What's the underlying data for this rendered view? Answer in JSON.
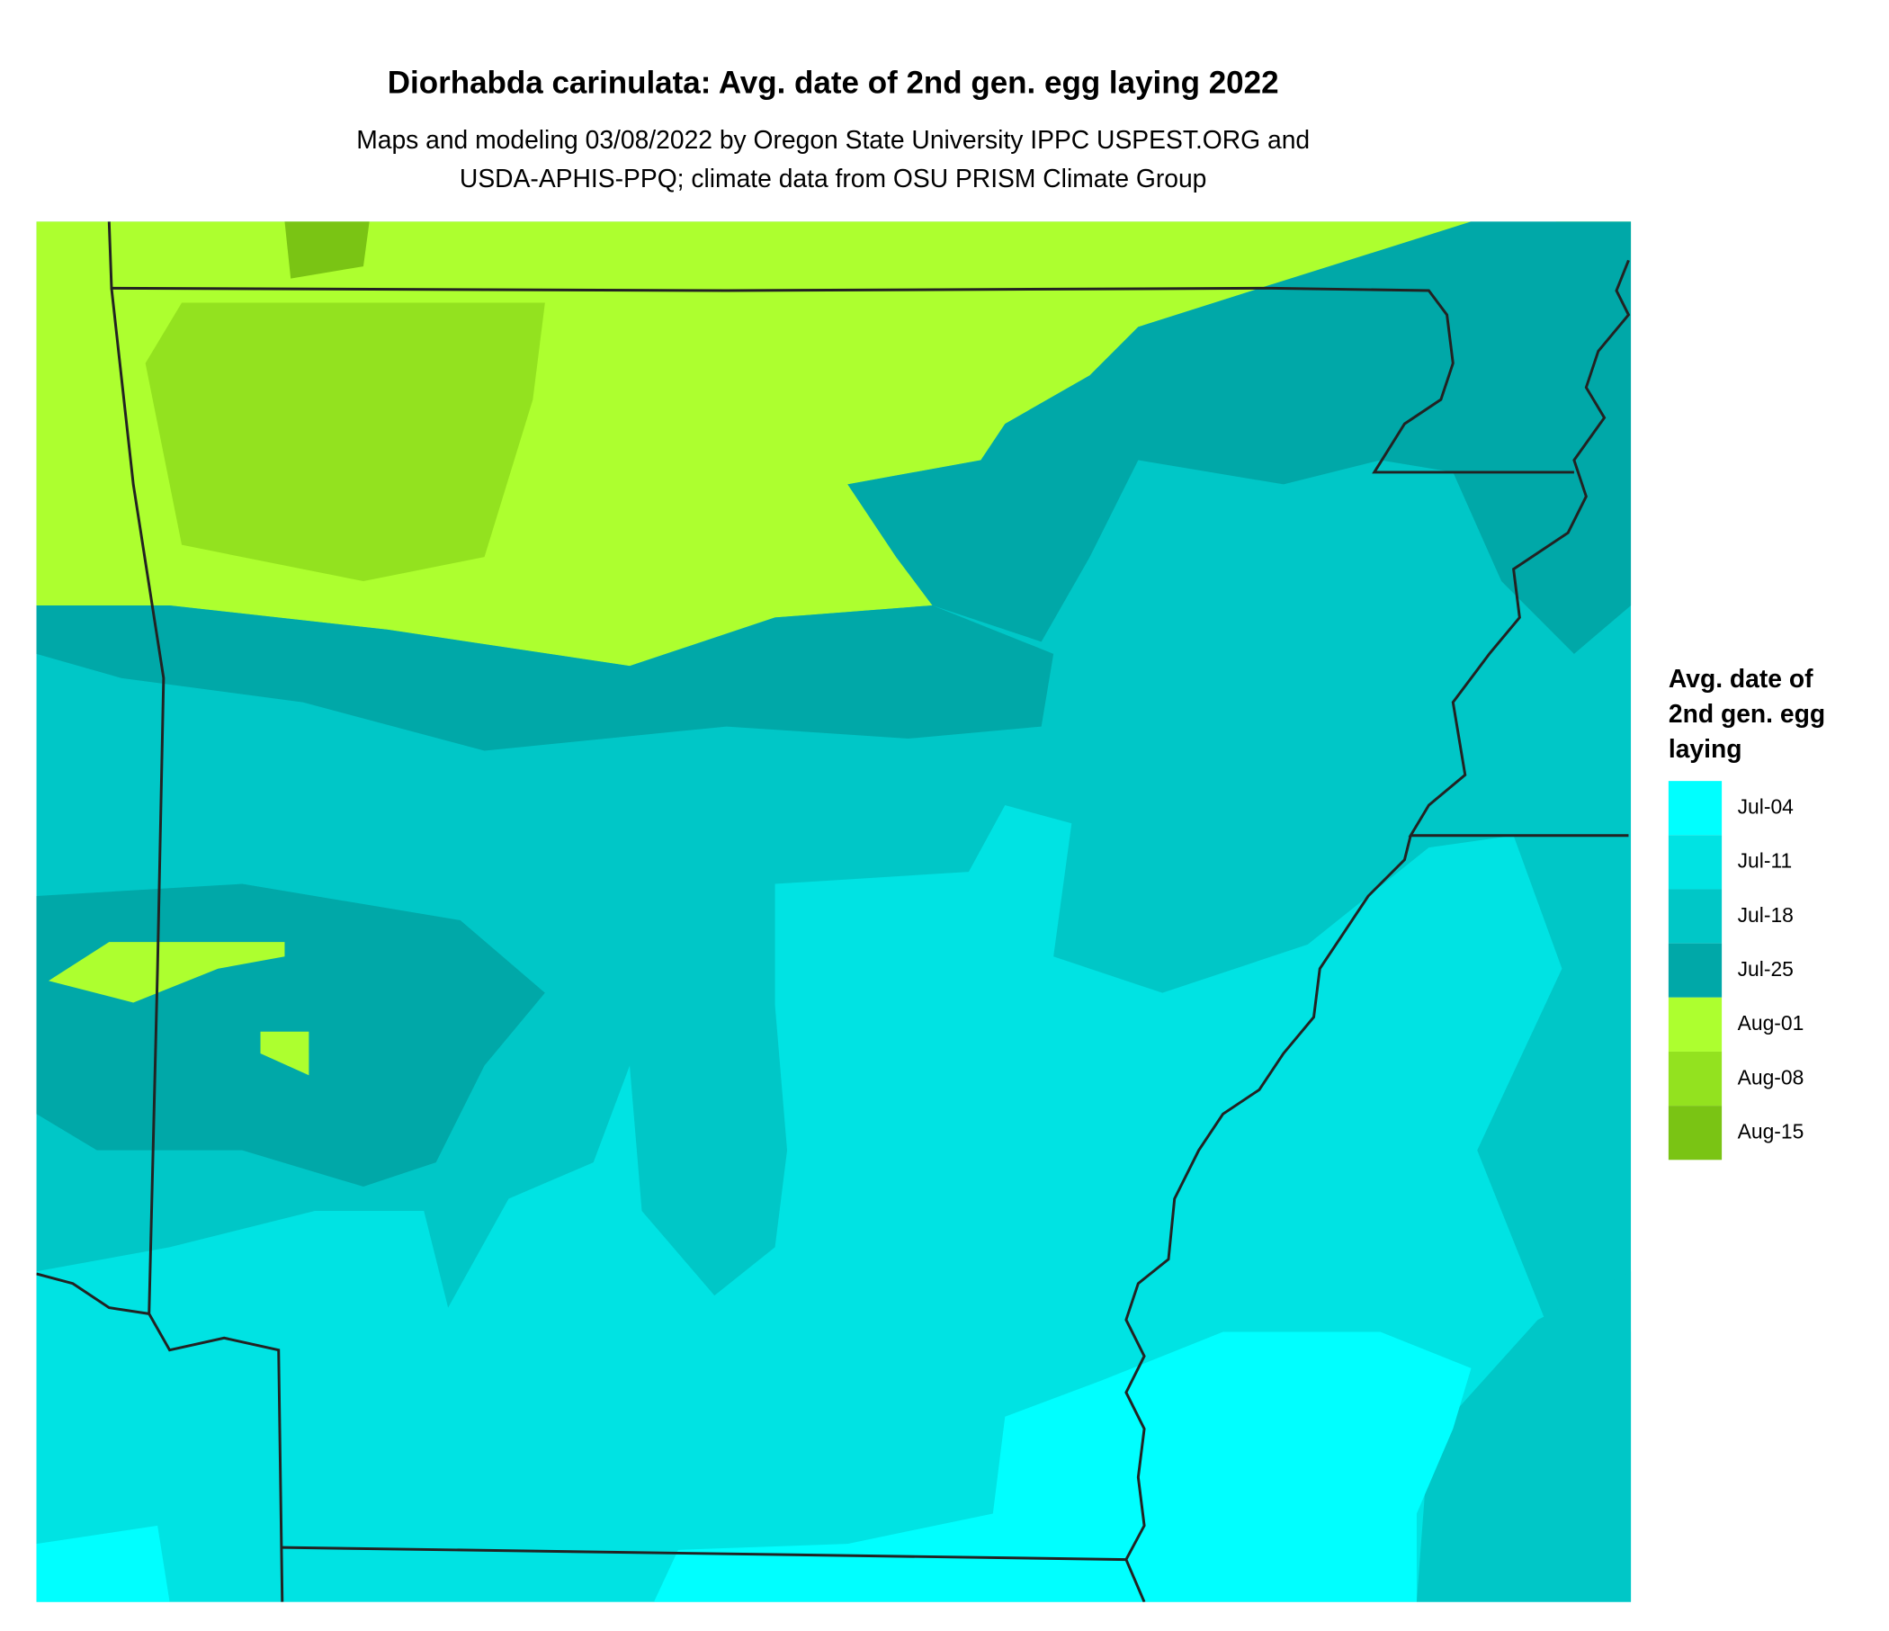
{
  "title": "Diorhabda carinulata: Avg. date of 2nd gen. egg laying 2022",
  "subtitle": [
    "Maps and modeling 03/08/2022 by Oregon State University IPPC USPEST.ORG and",
    "USDA-APHIS-PPQ; climate data from OSU PRISM Climate Group"
  ],
  "legend": {
    "title": [
      "Avg. date of",
      "2nd gen. egg",
      "laying"
    ],
    "items": [
      {
        "label": "Jul-04",
        "color": "#00ffff"
      },
      {
        "label": "Jul-11",
        "color": "#00e3e3"
      },
      {
        "label": "Jul-18",
        "color": "#00c7c7"
      },
      {
        "label": "Jul-25",
        "color": "#00a8a8"
      },
      {
        "label": "Aug-01",
        "color": "#adff2f"
      },
      {
        "label": "Aug-08",
        "color": "#93e21f"
      },
      {
        "label": "Aug-15",
        "color": "#7ac414"
      }
    ]
  }
}
